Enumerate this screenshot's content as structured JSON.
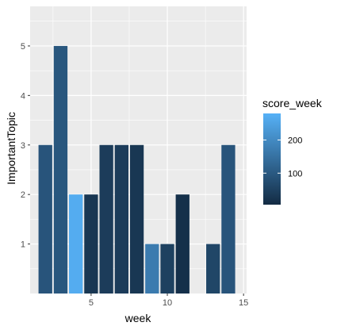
{
  "chart_data": {
    "type": "bar",
    "xlabel": "week",
    "ylabel": "ImportantTopic",
    "xlim": [
      1,
      15.2
    ],
    "ylim": [
      0,
      5.8
    ],
    "x_ticks": [
      5,
      10,
      15
    ],
    "y_ticks": [
      1,
      2,
      3,
      4,
      5
    ],
    "grid": true,
    "legend": {
      "title": "score_week",
      "position": "right",
      "type": "colorbar",
      "range": [
        5,
        280
      ],
      "ticks": [
        100,
        200
      ],
      "colors": {
        "low": "#132B43",
        "high": "#56B1F7"
      }
    },
    "background": "#EBEBEB",
    "gridline_color": "#FFFFFF",
    "bars": [
      {
        "x": 2,
        "y": 3,
        "score_week": 90
      },
      {
        "x": 3,
        "y": 5,
        "score_week": 95
      },
      {
        "x": 4,
        "y": 2,
        "score_week": 270
      },
      {
        "x": 5,
        "y": 2,
        "score_week": 30
      },
      {
        "x": 6,
        "y": 3,
        "score_week": 40
      },
      {
        "x": 7,
        "y": 3,
        "score_week": 40
      },
      {
        "x": 8,
        "y": 3,
        "score_week": 30
      },
      {
        "x": 9,
        "y": 1,
        "score_week": 170
      },
      {
        "x": 10,
        "y": 1,
        "score_week": 50
      },
      {
        "x": 11,
        "y": 2,
        "score_week": 15
      },
      {
        "x": 13,
        "y": 1,
        "score_week": 60
      },
      {
        "x": 14,
        "y": 3,
        "score_week": 90
      }
    ]
  }
}
